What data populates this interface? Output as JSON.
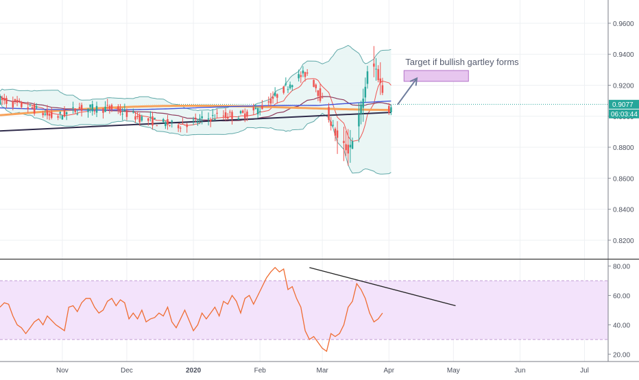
{
  "chart_data": [
    {
      "type": "candlestick",
      "role": "price",
      "title": "",
      "xlabel": "",
      "ylabel": "",
      "ylim": [
        0.808,
        0.975
      ],
      "y_ticks": [
        0.82,
        0.84,
        0.86,
        0.88,
        0.9,
        0.92,
        0.94,
        0.96
      ],
      "y_tick_labels": [
        "0.8200",
        "0.8400",
        "0.8600",
        "0.8800",
        "0.9000",
        "0.9200",
        "0.9400",
        "0.9600"
      ],
      "x_ticks": [
        {
          "label": "Nov",
          "day": 31
        },
        {
          "label": "Dec",
          "day": 61
        },
        {
          "label": "2020",
          "day": 92
        },
        {
          "label": "Feb",
          "day": 123
        },
        {
          "label": "Mar",
          "day": 152
        },
        {
          "label": "Apr",
          "day": 183
        },
        {
          "label": "May",
          "day": 213
        },
        {
          "label": "Jun",
          "day": 244
        },
        {
          "label": "Jul",
          "day": 274
        }
      ],
      "xlim": [
        2,
        285
      ],
      "grid": true,
      "price_line": {
        "value": 0.9077,
        "label": "0.9077",
        "color": "#26a69a"
      },
      "countdown": {
        "label": "06:03:44",
        "value": 0.9035
      },
      "annotation": {
        "text": "Target if bullish gartley forms",
        "box": {
          "x0_day": 190,
          "x1_day": 220,
          "y_low": 0.9225,
          "y_high": 0.9295
        },
        "arrow": {
          "from_day": 187,
          "from_value": 0.9075,
          "to_day": 196,
          "to_value": 0.9245
        }
      },
      "colors": {
        "up": "#26a69a",
        "down": "#ef5350",
        "band": "#5fa8a8",
        "band_fill": "#e8f5f4",
        "ma_fast": "#ef5350",
        "ma_mid": "#8d3a5c",
        "ma_blue": "#3f51d6",
        "ma_orange": "#f7a25a",
        "ma_long": "#2e2a4a"
      }
    },
    {
      "type": "line",
      "role": "rsi",
      "ylim": [
        15,
        84
      ],
      "y_ticks": [
        20,
        40,
        60,
        80
      ],
      "y_tick_labels": [
        "20.00",
        "40.00",
        "60.00",
        "80.00"
      ],
      "band": [
        30,
        70
      ],
      "colors": {
        "line": "#ef6c31",
        "band_fill": "#f3e3fb",
        "band_edge": "#c29bd3",
        "trend": "#222222"
      },
      "x": [
        2,
        4,
        6,
        8,
        10,
        12,
        14,
        16,
        18,
        20,
        22,
        24,
        26,
        28,
        30,
        32,
        34,
        36,
        38,
        40,
        42,
        44,
        46,
        48,
        50,
        52,
        54,
        56,
        58,
        60,
        62,
        64,
        66,
        68,
        70,
        72,
        74,
        76,
        78,
        80,
        82,
        84,
        86,
        88,
        90,
        92,
        94,
        96,
        98,
        100,
        102,
        104,
        106,
        108,
        110,
        112,
        114,
        116,
        118,
        120,
        122,
        124,
        126,
        128,
        130,
        132,
        134,
        136,
        138,
        140,
        142,
        144,
        146,
        148,
        150,
        152,
        154,
        156,
        158,
        160,
        162,
        164,
        166,
        168,
        170,
        172,
        174,
        176,
        178,
        180
      ],
      "values": [
        52,
        55,
        54,
        46,
        40,
        38,
        34,
        38,
        42,
        44,
        40,
        46,
        43,
        40,
        38,
        36,
        52,
        53,
        49,
        55,
        58,
        58,
        52,
        48,
        50,
        56,
        58,
        53,
        57,
        55,
        44,
        48,
        44,
        50,
        42,
        44,
        45,
        48,
        46,
        52,
        42,
        38,
        44,
        50,
        43,
        36,
        40,
        48,
        44,
        48,
        52,
        46,
        56,
        54,
        60,
        56,
        48,
        58,
        60,
        54,
        60,
        66,
        72,
        76,
        79,
        76,
        78,
        64,
        66,
        58,
        52,
        36,
        30,
        32,
        28,
        24,
        22,
        34,
        32,
        34,
        40,
        52,
        56,
        68,
        64,
        58,
        48,
        42,
        44,
        48
      ],
      "trendline": {
        "x0": 146,
        "y0": 79,
        "x1": 214,
        "y1": 53
      }
    }
  ]
}
